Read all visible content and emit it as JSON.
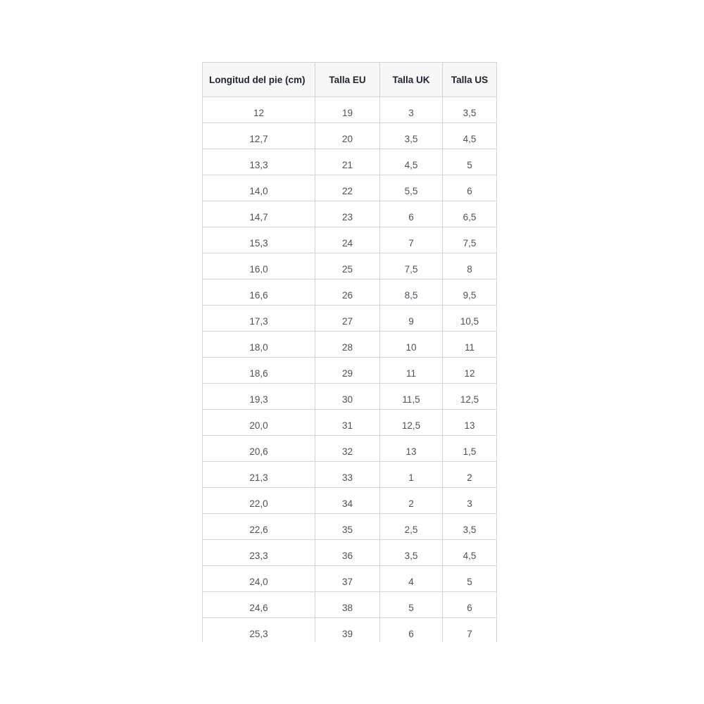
{
  "chart_data": {
    "type": "table",
    "columns": [
      "Longitud del pie (cm)",
      "Talla EU",
      "Talla UK",
      "Talla US"
    ],
    "rows": [
      [
        "12",
        "19",
        "3",
        "3,5"
      ],
      [
        "12,7",
        "20",
        "3,5",
        "4,5"
      ],
      [
        "13,3",
        "21",
        "4,5",
        "5"
      ],
      [
        "14,0",
        "22",
        "5,5",
        "6"
      ],
      [
        "14,7",
        "23",
        "6",
        "6,5"
      ],
      [
        "15,3",
        "24",
        "7",
        "7,5"
      ],
      [
        "16,0",
        "25",
        "7,5",
        "8"
      ],
      [
        "16,6",
        "26",
        "8,5",
        "9,5"
      ],
      [
        "17,3",
        "27",
        "9",
        "10,5"
      ],
      [
        "18,0",
        "28",
        "10",
        "11"
      ],
      [
        "18,6",
        "29",
        "11",
        "12"
      ],
      [
        "19,3",
        "30",
        "11,5",
        "12,5"
      ],
      [
        "20,0",
        "31",
        "12,5",
        "13"
      ],
      [
        "20,6",
        "32",
        "13",
        "1,5"
      ],
      [
        "21,3",
        "33",
        "1",
        "2"
      ],
      [
        "22,0",
        "34",
        "2",
        "3"
      ],
      [
        "22,6",
        "35",
        "2,5",
        "3,5"
      ],
      [
        "23,3",
        "36",
        "3,5",
        "4,5"
      ],
      [
        "24,0",
        "37",
        "4",
        "5"
      ],
      [
        "24,6",
        "38",
        "5",
        "6"
      ],
      [
        "25,3",
        "39",
        "6",
        "7"
      ]
    ],
    "layout_hints": {
      "header_bg": "#f7f7f7",
      "border_color": "#d4d4d4",
      "header_text_color": "#21252d",
      "cell_text_color": "#4d5157",
      "page_bg": "#ffffff",
      "grid": "full",
      "bottom_row_truncated": true
    }
  }
}
